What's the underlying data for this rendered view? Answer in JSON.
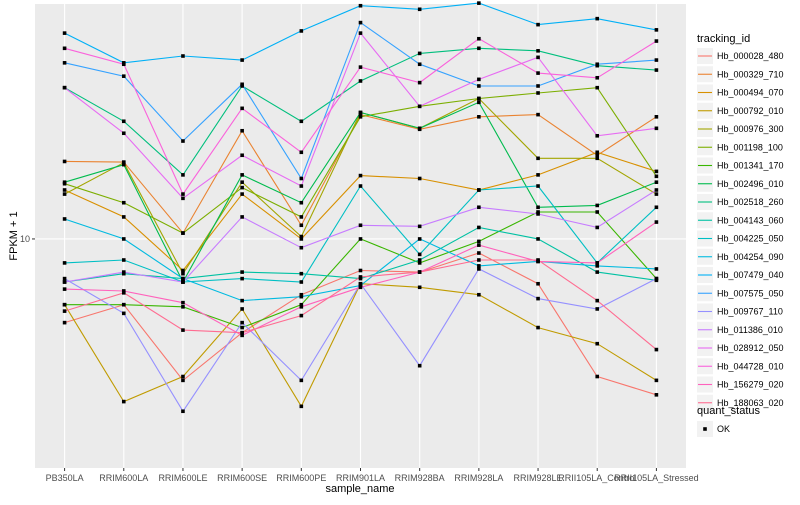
{
  "chart_data": {
    "type": "line",
    "xlabel": "sample_name",
    "ylabel": "FPKM + 1",
    "y_scale": "log",
    "y_tick_values": [
      10
    ],
    "y_tick_labels": [
      "10"
    ],
    "ylim": [
      1.5,
      70
    ],
    "grid": true,
    "legend_position": "right",
    "categories": [
      "PB350LA",
      "RRIM600LA",
      "RRIM600LE",
      "RRIM600SE",
      "RRIM600PE",
      "RRIM901LA",
      "RRIM928BA",
      "RRIM928LA",
      "RRIM928LE",
      "RRII105LA_Control",
      "RRII105LA_Stressed"
    ],
    "legend": {
      "title": "tracking_id",
      "entries": [
        "Hb_000028_480",
        "Hb_000329_710",
        "Hb_000494_070",
        "Hb_000792_010",
        "Hb_000976_300",
        "Hb_001198_100",
        "Hb_001341_170",
        "Hb_002496_010",
        "Hb_002518_260",
        "Hb_004143_060",
        "Hb_004225_050",
        "Hb_004254_090",
        "Hb_007479_040",
        "Hb_007575_050",
        "Hb_009767_110",
        "Hb_011386_010",
        "Hb_028912_050",
        "Hb_044728_010",
        "Hb_156279_020",
        "Hb_188063_020"
      ]
    },
    "shape_legend": {
      "title": "quant_status",
      "entries": [
        "OK"
      ]
    },
    "colors": [
      "#F8766D",
      "#EA8331",
      "#D89000",
      "#C09B00",
      "#A3A500",
      "#7CAE00",
      "#39B600",
      "#00BB4E",
      "#00BF7D",
      "#00C1A3",
      "#00BFC4",
      "#00BAE0",
      "#00B0F6",
      "#35A2FF",
      "#9590FF",
      "#C77CFF",
      "#E76BF3",
      "#FA62DB",
      "#FF62BC",
      "#FF6C91"
    ],
    "series": [
      {
        "name": "Hb_000028_480",
        "values": [
          5.0,
          5.8,
          3.1,
          4.6,
          6.3,
          7.7,
          7.6,
          8.9,
          6.9,
          3.2,
          2.75
        ]
      },
      {
        "name": "Hb_000329_710",
        "values": [
          19.0,
          18.9,
          10.5,
          24.5,
          11.2,
          28.0,
          24.8,
          27.5,
          28.0,
          20.0,
          27.5
        ]
      },
      {
        "name": "Hb_000494_070",
        "values": [
          15.0,
          12.0,
          7.7,
          14.5,
          10.0,
          16.9,
          16.5,
          15.0,
          17.0,
          20.5,
          17.5
        ]
      },
      {
        "name": "Hb_000792_010",
        "values": [
          5.8,
          2.6,
          3.2,
          5.6,
          2.5,
          6.9,
          6.7,
          6.3,
          4.8,
          4.2,
          3.1
        ]
      },
      {
        "name": "Hb_000976_300",
        "values": [
          14.5,
          18.8,
          7.5,
          16.0,
          10.2,
          28.5,
          25.0,
          32.0,
          19.5,
          19.5,
          14.5
        ]
      },
      {
        "name": "Hb_001198_100",
        "values": [
          15.8,
          13.5,
          10.5,
          15.3,
          12.0,
          27.5,
          30.0,
          32.0,
          33.5,
          35.0,
          16.8
        ]
      },
      {
        "name": "Hb_001341_170",
        "values": [
          5.8,
          5.8,
          5.7,
          4.8,
          5.8,
          10.0,
          8.2,
          9.8,
          12.5,
          12.5,
          7.2
        ]
      },
      {
        "name": "Hb_002496_010",
        "values": [
          16.0,
          18.5,
          7.0,
          17.0,
          13.5,
          28.5,
          25.0,
          31.0,
          13.0,
          13.2,
          16.0
        ]
      },
      {
        "name": "Hb_002518_260",
        "values": [
          35.0,
          26.5,
          17.0,
          35.5,
          26.5,
          37.0,
          46.5,
          48.5,
          47.5,
          42.0,
          40.5
        ]
      },
      {
        "name": "Hb_004143_060",
        "values": [
          7.0,
          7.5,
          7.2,
          7.6,
          7.5,
          7.2,
          8.4,
          11.0,
          10.0,
          7.6,
          7.1
        ]
      },
      {
        "name": "Hb_004225_050",
        "values": [
          8.2,
          8.4,
          7.0,
          7.2,
          7.0,
          15.5,
          8.8,
          15.0,
          15.5,
          8.2,
          13.0
        ]
      },
      {
        "name": "Hb_004254_090",
        "values": [
          11.8,
          10.0,
          7.2,
          6.0,
          6.2,
          6.8,
          10.0,
          8.0,
          8.3,
          8.0,
          7.8
        ]
      },
      {
        "name": "Hb_007479_040",
        "values": [
          55.0,
          43.0,
          45.5,
          44.0,
          56.0,
          69.0,
          67.0,
          70.5,
          59.0,
          62.0,
          56.5
        ]
      },
      {
        "name": "Hb_007575_050",
        "values": [
          43.0,
          38.5,
          22.5,
          36.0,
          16.5,
          60.0,
          42.5,
          35.5,
          35.5,
          42.5,
          44.0
        ]
      },
      {
        "name": "Hb_009767_110",
        "values": [
          7.2,
          5.4,
          2.4,
          5.0,
          3.1,
          6.9,
          3.5,
          7.8,
          6.1,
          5.6,
          7.2
        ]
      },
      {
        "name": "Hb_011386_010",
        "values": [
          7.0,
          7.6,
          7.0,
          12.0,
          9.3,
          11.2,
          11.1,
          13.0,
          12.3,
          11.0,
          15.0
        ]
      },
      {
        "name": "Hb_028912_050",
        "values": [
          35.0,
          24.0,
          14.0,
          20.0,
          15.5,
          55.0,
          30.0,
          37.5,
          45.0,
          23.5,
          25.0
        ]
      },
      {
        "name": "Hb_044728_010",
        "values": [
          48.5,
          42.5,
          14.5,
          29.5,
          20.5,
          41.5,
          36.5,
          52.5,
          39.5,
          38.0,
          51.5
        ]
      },
      {
        "name": "Hb_156279_020",
        "values": [
          6.6,
          6.5,
          5.9,
          4.5,
          5.7,
          6.7,
          7.6,
          9.5,
          8.3,
          8.2,
          11.5
        ]
      },
      {
        "name": "Hb_188063_020",
        "values": [
          5.5,
          6.4,
          4.7,
          4.6,
          5.3,
          7.3,
          7.6,
          8.4,
          8.4,
          6.0,
          4.0
        ]
      }
    ]
  }
}
